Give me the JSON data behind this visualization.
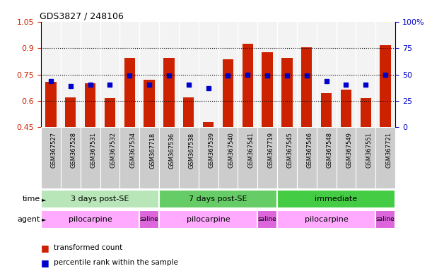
{
  "title": "GDS3827 / 248106",
  "samples": [
    "GSM367527",
    "GSM367528",
    "GSM367531",
    "GSM367532",
    "GSM367534",
    "GSM367718",
    "GSM367536",
    "GSM367538",
    "GSM367539",
    "GSM367540",
    "GSM367541",
    "GSM367719",
    "GSM367545",
    "GSM367546",
    "GSM367548",
    "GSM367549",
    "GSM367551",
    "GSM367721"
  ],
  "red_bars": [
    0.71,
    0.62,
    0.7,
    0.615,
    0.845,
    0.72,
    0.845,
    0.62,
    0.48,
    0.835,
    0.925,
    0.875,
    0.845,
    0.905,
    0.645,
    0.663,
    0.615,
    0.915
  ],
  "blue_squares": [
    0.714,
    0.686,
    0.694,
    0.694,
    0.744,
    0.694,
    0.744,
    0.694,
    0.672,
    0.744,
    0.75,
    0.744,
    0.744,
    0.744,
    0.714,
    0.694,
    0.694,
    0.75
  ],
  "ymin": 0.45,
  "ymax": 1.05,
  "yticks_left": [
    0.45,
    0.6,
    0.75,
    0.9,
    1.05
  ],
  "right_tick_labels": [
    "0",
    "25",
    "50",
    "75",
    "100%"
  ],
  "gridlines": [
    0.6,
    0.75,
    0.9
  ],
  "time_groups": [
    {
      "label": "3 days post-SE",
      "start": 0,
      "end": 6,
      "color": "#b8e6b8"
    },
    {
      "label": "7 days post-SE",
      "start": 6,
      "end": 12,
      "color": "#66cc66"
    },
    {
      "label": "immediate",
      "start": 12,
      "end": 18,
      "color": "#44cc44"
    }
  ],
  "agent_groups": [
    {
      "label": "pilocarpine",
      "start": 0,
      "end": 5,
      "color": "#ffaaff"
    },
    {
      "label": "saline",
      "start": 5,
      "end": 6,
      "color": "#dd66dd"
    },
    {
      "label": "pilocarpine",
      "start": 6,
      "end": 11,
      "color": "#ffaaff"
    },
    {
      "label": "saline",
      "start": 11,
      "end": 12,
      "color": "#dd66dd"
    },
    {
      "label": "pilocarpine",
      "start": 12,
      "end": 17,
      "color": "#ffaaff"
    },
    {
      "label": "saline",
      "start": 17,
      "end": 18,
      "color": "#dd66dd"
    }
  ],
  "bar_color": "#CC2200",
  "square_color": "#0000CC",
  "left_axis_color": "#CC2200",
  "right_axis_color": "#0000CC",
  "col_bg_color": "#dddddd"
}
